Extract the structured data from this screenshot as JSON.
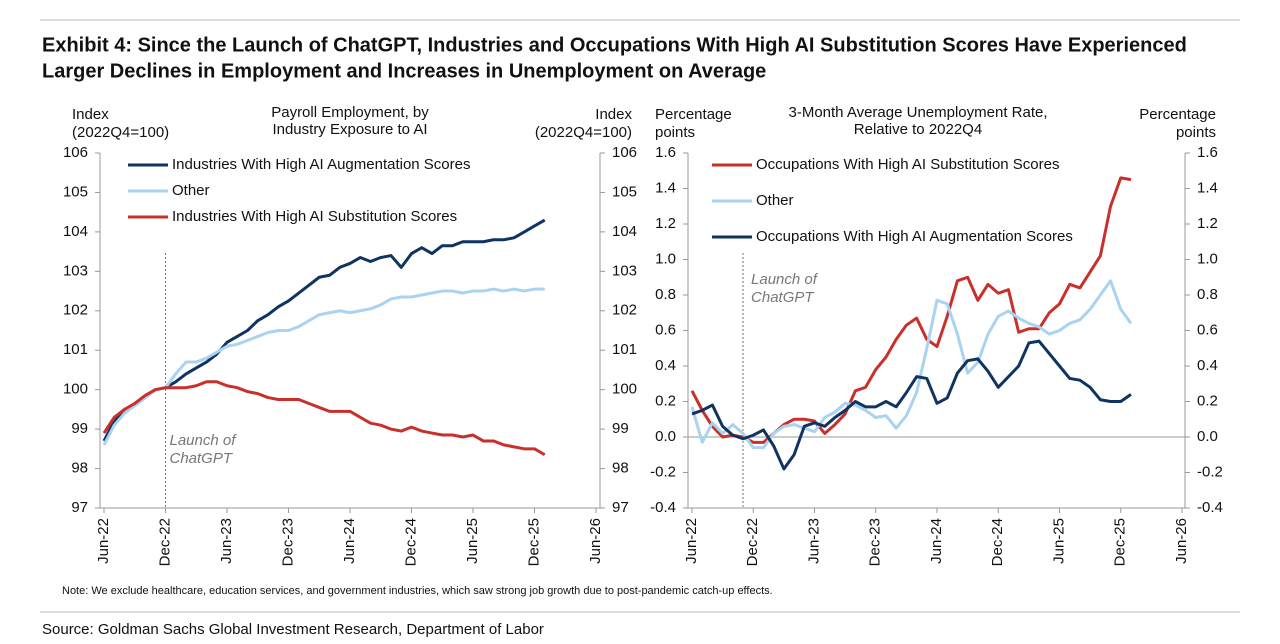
{
  "title": [
    "Exhibit 4: Since the Launch of ChatGPT, Industries and Occupations With High AI Substitution Scores Have Experienced",
    "Larger Declines in Employment and Increases in Unemployment on Average"
  ],
  "note": "Note: We exclude healthcare, education services, and government industries, which saw strong job growth due to post-pandemic catch-up effects.",
  "source": "Source: Goldman Sachs Global Investment Research, Department of Labor",
  "chart_data": [
    {
      "type": "line",
      "title": [
        "Payroll Employment, by",
        "Industry Exposure to AI"
      ],
      "y_label": [
        "Index",
        "(2022Q4=100)"
      ],
      "y2_label": [
        "Index",
        "(2022Q4=100)"
      ],
      "annotation": {
        "text": [
          "Launch of",
          "ChatGPT"
        ],
        "x": "2022-12"
      },
      "legend": "upper left",
      "x": [
        "2022-06",
        "2022-07",
        "2022-08",
        "2022-09",
        "2022-10",
        "2022-11",
        "2022-12",
        "2023-01",
        "2023-02",
        "2023-03",
        "2023-04",
        "2023-05",
        "2023-06",
        "2023-07",
        "2023-08",
        "2023-09",
        "2023-10",
        "2023-11",
        "2023-12",
        "2024-01",
        "2024-02",
        "2024-03",
        "2024-04",
        "2024-05",
        "2024-06",
        "2024-07",
        "2024-08",
        "2024-09",
        "2024-10",
        "2024-11",
        "2024-12",
        "2025-01",
        "2025-02",
        "2025-03",
        "2025-04",
        "2025-05",
        "2025-06",
        "2025-07",
        "2025-08",
        "2025-09",
        "2025-10",
        "2025-11",
        "2025-12",
        "2026-01"
      ],
      "xlim": [
        "2022-06",
        "2026-06"
      ],
      "xticks": [
        {
          "value": "2022-06",
          "label": "Jun-22"
        },
        {
          "value": "2022-12",
          "label": "Dec-22"
        },
        {
          "value": "2023-06",
          "label": "Jun-23"
        },
        {
          "value": "2023-12",
          "label": "Dec-23"
        },
        {
          "value": "2024-06",
          "label": "Jun-24"
        },
        {
          "value": "2024-12",
          "label": "Dec-24"
        },
        {
          "value": "2025-06",
          "label": "Jun-25"
        },
        {
          "value": "2025-12",
          "label": "Dec-25"
        },
        {
          "value": "2026-06",
          "label": "Jun-26"
        }
      ],
      "ylim": [
        97,
        106
      ],
      "yticks": [
        97,
        98,
        99,
        100,
        101,
        102,
        103,
        104,
        105,
        106
      ],
      "y2lim": [
        97,
        106
      ],
      "y2ticks": [
        97,
        98,
        99,
        100,
        101,
        102,
        103,
        104,
        105,
        106
      ],
      "series": [
        {
          "name": "Industries With High AI Augmentation Scores",
          "color": "#0f3461",
          "values": [
            98.7,
            99.2,
            99.5,
            99.6,
            99.8,
            100.0,
            100.05,
            100.2,
            100.4,
            100.55,
            100.7,
            100.9,
            101.2,
            101.35,
            101.5,
            101.75,
            101.9,
            102.1,
            102.25,
            102.45,
            102.65,
            102.85,
            102.9,
            103.1,
            103.2,
            103.35,
            103.25,
            103.35,
            103.4,
            103.1,
            103.45,
            103.6,
            103.45,
            103.65,
            103.65,
            103.75,
            103.75,
            103.75,
            103.8,
            103.8,
            103.85,
            104.0,
            104.15,
            104.3
          ]
        },
        {
          "name": "Other",
          "color": "#a9d3f0",
          "values": [
            98.6,
            99.1,
            99.4,
            99.6,
            99.8,
            100.0,
            100.05,
            100.4,
            100.7,
            100.7,
            100.8,
            100.95,
            101.1,
            101.15,
            101.25,
            101.35,
            101.45,
            101.5,
            101.5,
            101.6,
            101.75,
            101.9,
            101.95,
            102.0,
            101.95,
            102.0,
            102.05,
            102.15,
            102.3,
            102.35,
            102.35,
            102.4,
            102.45,
            102.5,
            102.5,
            102.45,
            102.5,
            102.5,
            102.55,
            102.5,
            102.55,
            102.5,
            102.55,
            102.55
          ]
        },
        {
          "name": "Industries With High AI Substitution Scores",
          "color": "#c8302c",
          "values": [
            98.9,
            99.3,
            99.5,
            99.65,
            99.85,
            100.0,
            100.05,
            100.05,
            100.05,
            100.1,
            100.2,
            100.2,
            100.1,
            100.05,
            99.95,
            99.9,
            99.8,
            99.75,
            99.75,
            99.75,
            99.65,
            99.55,
            99.45,
            99.45,
            99.45,
            99.3,
            99.15,
            99.1,
            99.0,
            98.95,
            99.05,
            98.95,
            98.9,
            98.85,
            98.85,
            98.8,
            98.85,
            98.7,
            98.7,
            98.6,
            98.55,
            98.5,
            98.5,
            98.35
          ]
        }
      ]
    },
    {
      "type": "line",
      "title": [
        "3-Month Average Unemployment Rate,",
        "Relative to 2022Q4"
      ],
      "y_label": [
        "Percentage",
        "points"
      ],
      "y2_label": [
        "Percentage",
        "points"
      ],
      "annotation": {
        "text": [
          "Launch of",
          "ChatGPT"
        ],
        "x": "2022-11"
      },
      "legend": "upper left",
      "zero_line": true,
      "x": [
        "2022-06",
        "2022-07",
        "2022-08",
        "2022-09",
        "2022-10",
        "2022-11",
        "2022-12",
        "2023-01",
        "2023-02",
        "2023-03",
        "2023-04",
        "2023-05",
        "2023-06",
        "2023-07",
        "2023-08",
        "2023-09",
        "2023-10",
        "2023-11",
        "2023-12",
        "2024-01",
        "2024-02",
        "2024-03",
        "2024-04",
        "2024-05",
        "2024-06",
        "2024-07",
        "2024-08",
        "2024-09",
        "2024-10",
        "2024-11",
        "2024-12",
        "2025-01",
        "2025-02",
        "2025-03",
        "2025-04",
        "2025-05",
        "2025-06",
        "2025-07",
        "2025-08",
        "2025-09",
        "2025-10",
        "2025-11",
        "2025-12",
        "2026-01"
      ],
      "xlim": [
        "2022-06",
        "2026-06"
      ],
      "xticks": [
        {
          "value": "2022-06",
          "label": "Jun-22"
        },
        {
          "value": "2022-12",
          "label": "Dec-22"
        },
        {
          "value": "2023-06",
          "label": "Jun-23"
        },
        {
          "value": "2023-12",
          "label": "Dec-23"
        },
        {
          "value": "2024-06",
          "label": "Jun-24"
        },
        {
          "value": "2024-12",
          "label": "Dec-24"
        },
        {
          "value": "2025-06",
          "label": "Jun-25"
        },
        {
          "value": "2025-12",
          "label": "Dec-25"
        },
        {
          "value": "2026-06",
          "label": "Jun-26"
        }
      ],
      "ylim": [
        -0.4,
        1.6
      ],
      "yticks": [
        -0.4,
        -0.2,
        {
          "value": 0,
          "label": "0.0"
        },
        0.2,
        0.4,
        0.6,
        0.8,
        {
          "value": 1,
          "label": "1.0"
        },
        1.2,
        1.4,
        1.6
      ],
      "y2lim": [
        -0.4,
        1.6
      ],
      "y2ticks": [
        -0.4,
        -0.2,
        {
          "value": 0,
          "label": "0.0"
        },
        0.2,
        0.4,
        0.6,
        0.8,
        {
          "value": 1,
          "label": "1.0"
        },
        1.2,
        1.4,
        1.6
      ],
      "series": [
        {
          "name": "Occupations With High AI Substitution Scores",
          "color": "#c8302c",
          "values": [
            0.26,
            0.15,
            0.06,
            0.0,
            0.01,
            0.0,
            -0.03,
            -0.03,
            0.02,
            0.07,
            0.1,
            0.1,
            0.09,
            0.02,
            0.07,
            0.13,
            0.26,
            0.28,
            0.38,
            0.45,
            0.55,
            0.63,
            0.67,
            0.55,
            0.51,
            0.68,
            0.88,
            0.9,
            0.77,
            0.86,
            0.81,
            0.83,
            0.59,
            0.61,
            0.61,
            0.7,
            0.75,
            0.86,
            0.84,
            0.93,
            1.02,
            1.3,
            1.46,
            1.45
          ]
        },
        {
          "name": "Other",
          "color": "#a9d3f0",
          "values": [
            0.17,
            -0.03,
            0.08,
            0.02,
            0.07,
            0.02,
            -0.06,
            -0.06,
            0.02,
            0.06,
            0.07,
            0.05,
            0.03,
            0.11,
            0.14,
            0.19,
            0.18,
            0.15,
            0.11,
            0.12,
            0.05,
            0.12,
            0.25,
            0.5,
            0.77,
            0.75,
            0.58,
            0.36,
            0.42,
            0.58,
            0.68,
            0.71,
            0.67,
            0.64,
            0.62,
            0.58,
            0.6,
            0.64,
            0.66,
            0.72,
            0.8,
            0.88,
            0.72,
            0.64
          ]
        },
        {
          "name": "Occupations With High AI Augmentation Scores",
          "color": "#0f3461",
          "values": [
            0.13,
            0.15,
            0.18,
            0.06,
            0.01,
            -0.01,
            0.01,
            0.04,
            -0.05,
            -0.18,
            -0.1,
            0.06,
            0.08,
            0.06,
            0.11,
            0.15,
            0.2,
            0.17,
            0.17,
            0.2,
            0.17,
            0.25,
            0.34,
            0.33,
            0.19,
            0.22,
            0.36,
            0.43,
            0.44,
            0.37,
            0.28,
            0.34,
            0.4,
            0.53,
            0.54,
            0.47,
            0.4,
            0.33,
            0.32,
            0.28,
            0.21,
            0.2,
            0.2,
            0.24
          ]
        }
      ]
    }
  ]
}
